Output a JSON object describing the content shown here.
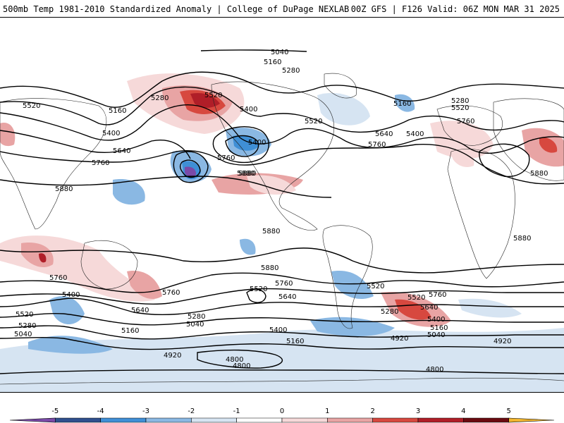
{
  "header": {
    "title_left": "500mb Temp 1981-2010 Standardized Anomaly | College of DuPage NEXLAB",
    "title_right": "00Z GFS | F126 Valid: 06Z MON MAR 31 2025"
  },
  "colors": {
    "land_border": "#222222",
    "contour": "#000000",
    "anomaly": {
      "-5": "#7a4aa8",
      "-4": "#2f4f8e",
      "-3": "#3f8fd6",
      "-2": "#8ab8e3",
      "-1": "#d6e4f2",
      "0": "#ffffff",
      "1": "#f6d9d9",
      "2": "#e8a4a4",
      "3": "#d7483f",
      "4": "#b01e28",
      "5": "#6a0a10",
      "6": "#f2b630"
    }
  },
  "colorbar": {
    "ticks": [
      "-5",
      "-4",
      "-3",
      "-2",
      "-1",
      "0",
      "1",
      "2",
      "3",
      "4",
      "5"
    ],
    "segment_colors": [
      "#7a4aa8",
      "#2f4f8e",
      "#3f8fd6",
      "#8ab8e3",
      "#d6e4f2",
      "#ffffff",
      "#f6d9d9",
      "#e8a4a4",
      "#d7483f",
      "#b01e28",
      "#6a0a10",
      "#f2b630"
    ]
  },
  "contour_labels": [
    {
      "text": "5040"
    },
    {
      "text": "5160"
    },
    {
      "text": "5280"
    },
    {
      "text": "5520"
    },
    {
      "text": "5400"
    },
    {
      "text": "5520"
    },
    {
      "text": "5160"
    },
    {
      "text": "5280"
    },
    {
      "text": "5400"
    },
    {
      "text": "5640"
    },
    {
      "text": "5760"
    },
    {
      "text": "5520"
    },
    {
      "text": "5400"
    },
    {
      "text": "5760"
    },
    {
      "text": "5880"
    },
    {
      "text": "5640"
    },
    {
      "text": "5400"
    },
    {
      "text": "5760"
    },
    {
      "text": "5160"
    },
    {
      "text": "5280"
    },
    {
      "text": "5520"
    },
    {
      "text": "5760"
    },
    {
      "text": "5880"
    },
    {
      "text": "5880"
    },
    {
      "text": "5880"
    },
    {
      "text": "5880"
    },
    {
      "text": "5880"
    },
    {
      "text": "5760"
    },
    {
      "text": "5400"
    },
    {
      "text": "5760"
    },
    {
      "text": "5520"
    },
    {
      "text": "5640"
    },
    {
      "text": "5760"
    },
    {
      "text": "5520"
    },
    {
      "text": "5640"
    },
    {
      "text": "5280"
    },
    {
      "text": "5040"
    },
    {
      "text": "5160"
    },
    {
      "text": "4920"
    },
    {
      "text": "5400"
    },
    {
      "text": "5160"
    },
    {
      "text": "4800"
    },
    {
      "text": "4800"
    },
    {
      "text": "4920"
    },
    {
      "text": "5760"
    },
    {
      "text": "5640"
    },
    {
      "text": "5520"
    },
    {
      "text": "5400"
    },
    {
      "text": "5280"
    },
    {
      "text": "5160"
    },
    {
      "text": "5040"
    },
    {
      "text": "4920"
    },
    {
      "text": "4800"
    },
    {
      "text": "5520"
    },
    {
      "text": "5280"
    },
    {
      "text": "5040"
    },
    {
      "text": "5880"
    }
  ]
}
